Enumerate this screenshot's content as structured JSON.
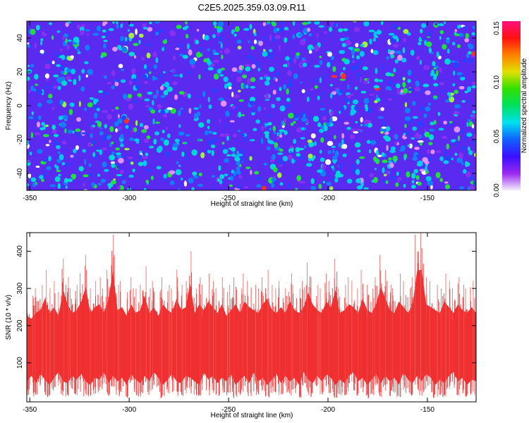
{
  "title": "C2E5.2025.359.03.09.R11",
  "chart_data": [
    {
      "type": "heatmap",
      "title": "C2E5.2025.359.03.09.R11",
      "xlabel": "Height of straight line (km)",
      "ylabel": "Frequency (Hz)",
      "xlim": [
        -351.5,
        -125.5
      ],
      "ylim": [
        -50,
        50
      ],
      "xticks": [
        -350,
        -300,
        -250,
        -200,
        -150
      ],
      "xtick_labels": [
        "-350",
        "-300",
        "-250",
        "-200",
        "-150"
      ],
      "yticks": [
        -40,
        -20,
        0,
        20,
        40
      ],
      "ytick_labels": [
        "-40",
        "-20",
        "0",
        "20",
        "40"
      ],
      "colorbar": {
        "label": "Normalized spectral amplitude",
        "range": [
          0,
          0.15
        ],
        "ticks": [
          0,
          0.05,
          0.1,
          0.15
        ],
        "tick_labels": [
          "0.00",
          "0.05",
          "0.10",
          "0.15"
        ],
        "colors": [
          "#f4eefc",
          "#9a28f0",
          "#3a10ff",
          "#1060ff",
          "#00e0f0",
          "#00e060",
          "#30e000",
          "#e0e000",
          "#ff8000",
          "#ff1010",
          "#ff1080"
        ]
      },
      "background_amplitude": 0.02,
      "blob_count": 1400,
      "seed": 7
    },
    {
      "type": "line",
      "xlabel": "Height of straight line (km)",
      "ylabel": "SNR (10 * v/v)",
      "xlim": [
        -351.5,
        -125.5
      ],
      "ylim": [
        -5,
        450
      ],
      "xticks": [
        -350,
        -300,
        -250,
        -200,
        -150
      ],
      "xtick_labels": [
        "-350",
        "-300",
        "-250",
        "-200",
        "-150"
      ],
      "yticks": [
        100,
        200,
        300,
        400
      ],
      "ytick_labels": [
        "100",
        "200",
        "300",
        "400"
      ],
      "color": "#f03030",
      "x_start": -351.5,
      "x_end": -125.5,
      "snr_max": [
        290,
        280,
        300,
        310,
        350,
        300,
        320,
        290,
        380,
        330,
        300,
        310,
        340,
        390,
        300,
        320,
        330,
        300,
        350,
        445,
        310,
        320,
        290,
        330,
        300,
        310,
        360,
        300,
        320,
        290,
        330,
        310,
        300,
        350,
        310,
        320,
        400,
        300,
        330,
        310,
        340,
        320,
        300,
        330,
        290,
        310,
        330,
        300,
        340,
        320,
        310,
        300,
        330,
        350,
        310,
        300,
        320,
        300,
        340,
        310,
        300,
        320,
        370,
        330,
        310,
        300,
        340,
        320,
        380,
        300,
        310,
        330,
        320,
        300,
        350,
        310,
        300,
        330,
        390,
        350,
        310,
        300,
        340,
        320,
        300,
        330,
        445,
        450,
        330,
        320,
        310,
        300,
        340,
        320,
        300,
        330,
        310,
        300,
        320,
        300
      ],
      "snr_min": [
        20,
        35,
        15,
        40,
        25,
        10,
        30,
        45,
        20,
        15,
        35,
        25,
        40,
        20,
        10,
        30,
        25,
        45,
        15,
        35,
        20,
        30,
        10,
        40,
        25,
        15,
        35,
        20,
        45,
        30,
        10,
        25,
        40,
        20,
        15,
        35,
        30,
        20,
        10,
        45,
        25,
        35,
        15,
        30,
        20,
        40,
        10,
        25,
        35,
        15,
        45,
        20,
        30,
        10,
        25,
        40,
        15,
        35,
        20,
        30,
        10,
        45,
        25,
        15,
        35,
        20,
        40,
        30,
        10,
        25,
        15,
        35,
        45,
        20,
        30,
        10,
        25,
        40,
        15,
        35,
        20,
        30,
        10,
        45,
        25,
        15,
        35,
        20,
        40,
        30,
        10,
        25,
        15,
        35,
        45,
        20,
        30,
        10,
        25,
        20
      ]
    }
  ]
}
